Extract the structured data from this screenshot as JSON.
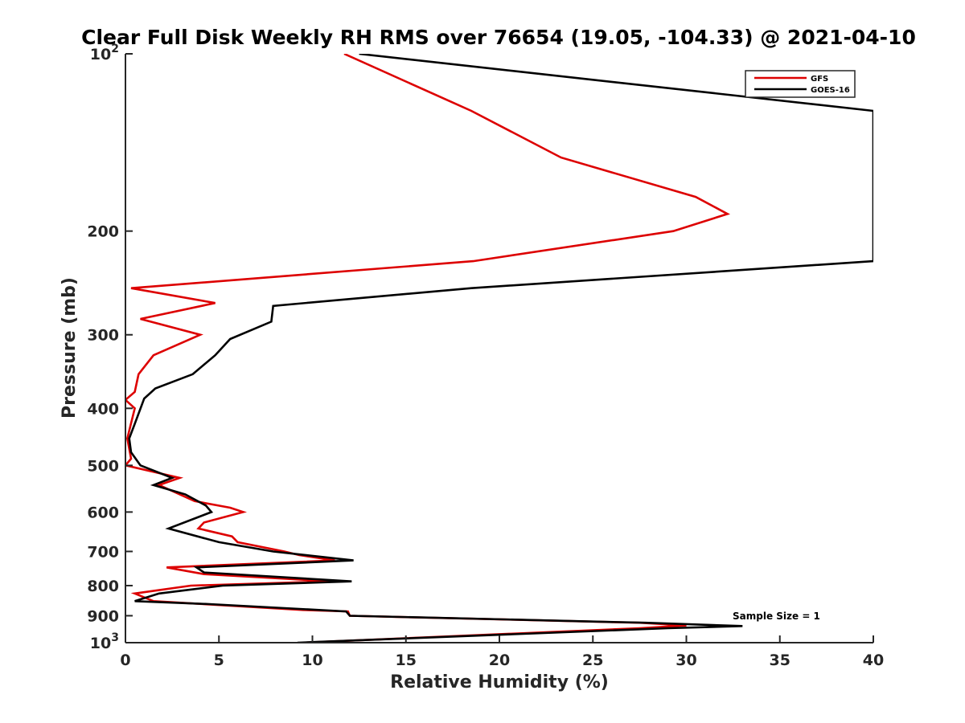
{
  "chart_data": {
    "type": "line",
    "title": "Clear Full Disk Weekly RH RMS over 76654 (19.05, -104.33) @ 2021-04-10",
    "xlabel": "Relative Humidity (%)",
    "ylabel": "Pressure (mb)",
    "xlim": [
      0,
      40
    ],
    "ylim": [
      100,
      1000
    ],
    "yscale": "log",
    "y_reversed": true,
    "grid": false,
    "x_ticks": [
      0,
      5,
      10,
      15,
      20,
      25,
      30,
      35,
      40
    ],
    "x_tick_labels": [
      "0",
      "5",
      "10",
      "15",
      "20",
      "25",
      "30",
      "35",
      "40"
    ],
    "y_ticks": [
      100,
      200,
      300,
      400,
      500,
      600,
      700,
      800,
      900,
      1000
    ],
    "y_tick_labels": [
      {
        "base": "10",
        "exp": "2"
      },
      {
        "text": "200"
      },
      {
        "text": "300"
      },
      {
        "text": "400"
      },
      {
        "text": "500"
      },
      {
        "text": "600"
      },
      {
        "text": "700"
      },
      {
        "text": "800"
      },
      {
        "text": "900"
      },
      {
        "base": "10",
        "exp": "3"
      }
    ],
    "legend_position": "top-right",
    "annotation": "Sample Size = 1",
    "series": [
      {
        "name": "GFS",
        "color": "#dd0000",
        "points": [
          [
            11.7,
            100
          ],
          [
            18.5,
            125
          ],
          [
            23.3,
            150
          ],
          [
            30.5,
            175
          ],
          [
            32.2,
            187
          ],
          [
            29.3,
            200
          ],
          [
            18.6,
            225
          ],
          [
            0.3,
            250
          ],
          [
            4.8,
            265
          ],
          [
            0.8,
            282
          ],
          [
            4.0,
            300
          ],
          [
            1.5,
            325
          ],
          [
            0.7,
            350
          ],
          [
            0.5,
            375
          ],
          [
            0.0,
            387
          ],
          [
            0.5,
            400
          ],
          [
            0.1,
            450
          ],
          [
            0.3,
            487
          ],
          [
            0.0,
            500
          ],
          [
            2.9,
            525
          ],
          [
            1.8,
            540
          ],
          [
            3.7,
            575
          ],
          [
            5.6,
            590
          ],
          [
            6.3,
            600
          ],
          [
            4.2,
            625
          ],
          [
            3.9,
            640
          ],
          [
            5.7,
            660
          ],
          [
            6.0,
            675
          ],
          [
            8.5,
            700
          ],
          [
            9.3,
            710
          ],
          [
            11.2,
            725
          ],
          [
            2.2,
            745
          ],
          [
            4.2,
            765
          ],
          [
            11.0,
            787
          ],
          [
            3.5,
            800
          ],
          [
            0.5,
            825
          ],
          [
            1.5,
            850
          ],
          [
            9.5,
            880
          ],
          [
            11.9,
            885
          ],
          [
            12.0,
            900
          ],
          [
            27.5,
            925
          ],
          [
            30.0,
            935
          ],
          [
            27.5,
            945
          ],
          [
            9.5,
            1000
          ]
        ]
      },
      {
        "name": "GOES-16",
        "color": "#000000",
        "points": [
          [
            12.5,
            100
          ],
          [
            40.0,
            125
          ],
          [
            40.0,
            225
          ],
          [
            18.5,
            250
          ],
          [
            7.9,
            268
          ],
          [
            7.8,
            285
          ],
          [
            5.6,
            305
          ],
          [
            4.8,
            325
          ],
          [
            3.6,
            350
          ],
          [
            1.6,
            370
          ],
          [
            1.0,
            385
          ],
          [
            0.5,
            425
          ],
          [
            0.2,
            450
          ],
          [
            0.3,
            475
          ],
          [
            0.8,
            500
          ],
          [
            2.5,
            525
          ],
          [
            1.5,
            540
          ],
          [
            3.2,
            560
          ],
          [
            4.3,
            585
          ],
          [
            4.6,
            600
          ],
          [
            2.3,
            640
          ],
          [
            5.0,
            675
          ],
          [
            7.9,
            700
          ],
          [
            10.0,
            712
          ],
          [
            12.2,
            725
          ],
          [
            3.8,
            745
          ],
          [
            4.2,
            760
          ],
          [
            12.1,
            787
          ],
          [
            5.2,
            800
          ],
          [
            1.8,
            825
          ],
          [
            0.5,
            850
          ],
          [
            4.5,
            860
          ],
          [
            11.8,
            885
          ],
          [
            12.0,
            900
          ],
          [
            27.8,
            925
          ],
          [
            33.0,
            937
          ],
          [
            29.0,
            945
          ],
          [
            9.2,
            1000
          ]
        ]
      }
    ]
  }
}
